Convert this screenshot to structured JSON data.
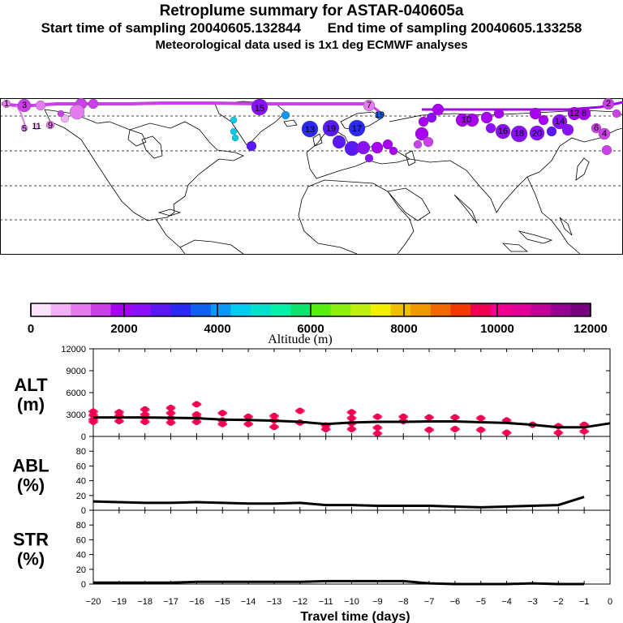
{
  "header": {
    "title": "Retroplume summary for ASTAR-040605a",
    "start": "Start time of sampling 20040605.132844",
    "end": "End time of sampling 20040605.133258",
    "met": "Meteorological data used is 1x1 deg ECMWF analyses"
  },
  "colorbar": {
    "label": "Altitude (m)",
    "tick_labels": [
      "0",
      "2000",
      "4000",
      "6000",
      "8000",
      "10000",
      "12000"
    ],
    "colors": [
      "#fbe4fb",
      "#f2b0f5",
      "#e47cf0",
      "#cc40e8",
      "#a800f0",
      "#8a10f8",
      "#5a18f2",
      "#2a2af0",
      "#1060f0",
      "#0c96f8",
      "#00cced",
      "#04e0cc",
      "#08f0a8",
      "#10e070",
      "#58ee10",
      "#8ef010",
      "#c0f010",
      "#f0f000",
      "#f0c000",
      "#f09800",
      "#f06800",
      "#f03800",
      "#f00050",
      "#f00090",
      "#e00098",
      "#c00098",
      "#960090",
      "#780080"
    ]
  },
  "map": {
    "plume_labels": [
      "13",
      "19",
      "17",
      "15",
      "19",
      "7",
      "9",
      "11",
      "5",
      "3",
      "1",
      "10",
      "16",
      "18",
      "20",
      "14",
      "12",
      "8",
      "6",
      "4",
      "2"
    ]
  },
  "chart_data": [
    {
      "type": "line",
      "panel": "ALT",
      "ylabel_line1": "ALT",
      "ylabel_line2": "(m)",
      "ylim": [
        0,
        12000
      ],
      "yticks": [
        "12000",
        "9000",
        "6000",
        "3000",
        "0"
      ],
      "ytick_values": [
        12000,
        9000,
        6000,
        3000,
        0
      ],
      "x": [
        -20,
        -19,
        -18,
        -17,
        -16,
        -15,
        -14,
        -13,
        -12,
        -11,
        -10,
        -9,
        -8,
        -7,
        -6,
        -5,
        -4,
        -3,
        -2,
        -1,
        0
      ],
      "mean_altitude": [
        2600,
        2600,
        2600,
        2550,
        2500,
        2300,
        2250,
        2150,
        2000,
        1700,
        1900,
        2000,
        2000,
        2050,
        2050,
        1950,
        1850,
        1600,
        1250,
        1250,
        1800
      ],
      "scatter_points": [
        {
          "x": -20,
          "y": 3400
        },
        {
          "x": -20,
          "y": 2900
        },
        {
          "x": -20,
          "y": 2300
        },
        {
          "x": -20,
          "y": 2000
        },
        {
          "x": -19,
          "y": 3300
        },
        {
          "x": -19,
          "y": 2800
        },
        {
          "x": -19,
          "y": 2100
        },
        {
          "x": -18,
          "y": 3700
        },
        {
          "x": -18,
          "y": 3000
        },
        {
          "x": -18,
          "y": 2600
        },
        {
          "x": -18,
          "y": 2000
        },
        {
          "x": -17,
          "y": 3900
        },
        {
          "x": -17,
          "y": 3200
        },
        {
          "x": -17,
          "y": 2500
        },
        {
          "x": -17,
          "y": 1900
        },
        {
          "x": -16,
          "y": 4400
        },
        {
          "x": -16,
          "y": 3000
        },
        {
          "x": -16,
          "y": 2600
        },
        {
          "x": -16,
          "y": 2000
        },
        {
          "x": -15,
          "y": 3200
        },
        {
          "x": -15,
          "y": 2200
        },
        {
          "x": -15,
          "y": 1700
        },
        {
          "x": -14,
          "y": 2700
        },
        {
          "x": -14,
          "y": 1700
        },
        {
          "x": -13,
          "y": 2800
        },
        {
          "x": -13,
          "y": 2200
        },
        {
          "x": -13,
          "y": 1300
        },
        {
          "x": -12,
          "y": 3500
        },
        {
          "x": -12,
          "y": 1900
        },
        {
          "x": -11,
          "y": 1500
        },
        {
          "x": -11,
          "y": 1000
        },
        {
          "x": -10,
          "y": 3300
        },
        {
          "x": -10,
          "y": 2500
        },
        {
          "x": -10,
          "y": 1800
        },
        {
          "x": -10,
          "y": 1000
        },
        {
          "x": -9,
          "y": 2700
        },
        {
          "x": -9,
          "y": 1200
        },
        {
          "x": -9,
          "y": 400
        },
        {
          "x": -8,
          "y": 2700
        },
        {
          "x": -8,
          "y": 2100
        },
        {
          "x": -7,
          "y": 2600
        },
        {
          "x": -7,
          "y": 900
        },
        {
          "x": -6,
          "y": 2600
        },
        {
          "x": -6,
          "y": 1000
        },
        {
          "x": -5,
          "y": 2500
        },
        {
          "x": -5,
          "y": 900
        },
        {
          "x": -4,
          "y": 2200
        },
        {
          "x": -4,
          "y": 500
        },
        {
          "x": -3,
          "y": 1600
        },
        {
          "x": -2,
          "y": 1400
        },
        {
          "x": -2,
          "y": 500
        },
        {
          "x": -1,
          "y": 1600
        },
        {
          "x": -1,
          "y": 700
        }
      ]
    },
    {
      "type": "line",
      "panel": "ABL",
      "ylabel_line1": "ABL",
      "ylabel_line2": "(%)",
      "ylim": [
        0,
        100
      ],
      "yticks": [
        "80",
        "60",
        "40",
        "20",
        "0"
      ],
      "ytick_values": [
        80,
        60,
        40,
        20,
        0
      ],
      "x": [
        -20,
        -19,
        -18,
        -17,
        -16,
        -15,
        -14,
        -13,
        -12,
        -11,
        -10,
        -9,
        -8,
        -7,
        -6,
        -5,
        -4,
        -3,
        -2,
        -1
      ],
      "values": [
        12,
        11,
        10,
        10,
        11,
        10,
        9,
        9,
        10,
        7,
        7,
        6,
        6,
        6,
        5,
        4,
        5,
        6,
        7,
        18
      ]
    },
    {
      "type": "line",
      "panel": "STR",
      "ylabel_line1": "STR",
      "ylabel_line2": "(%)",
      "ylim": [
        0,
        100
      ],
      "yticks": [
        "80",
        "60",
        "40",
        "20",
        "0"
      ],
      "ytick_values": [
        80,
        60,
        40,
        20,
        0
      ],
      "x": [
        -20,
        -19,
        -18,
        -17,
        -16,
        -15,
        -14,
        -13,
        -12,
        -11,
        -10,
        -9,
        -8,
        -7,
        -6,
        -5,
        -4,
        -3,
        -2,
        -1
      ],
      "values": [
        2,
        2,
        2,
        2,
        3,
        3,
        3,
        3,
        3,
        4,
        4,
        4,
        4,
        1,
        0,
        0,
        0,
        1,
        0,
        0
      ]
    }
  ],
  "xaxis": {
    "label": "Travel time (days)",
    "tick_labels": [
      "−20",
      "−19",
      "−18",
      "−17",
      "−16",
      "−15",
      "−14",
      "−13",
      "−12",
      "−11",
      "−10",
      "−9",
      "−8",
      "−7",
      "−6",
      "−5",
      "−4",
      "−3",
      "−2",
      "−1",
      "0"
    ],
    "tick_values": [
      -20,
      -19,
      -18,
      -17,
      -16,
      -15,
      -14,
      -13,
      -12,
      -11,
      -10,
      -9,
      -8,
      -7,
      -6,
      -5,
      -4,
      -3,
      -2,
      -1,
      0
    ]
  }
}
